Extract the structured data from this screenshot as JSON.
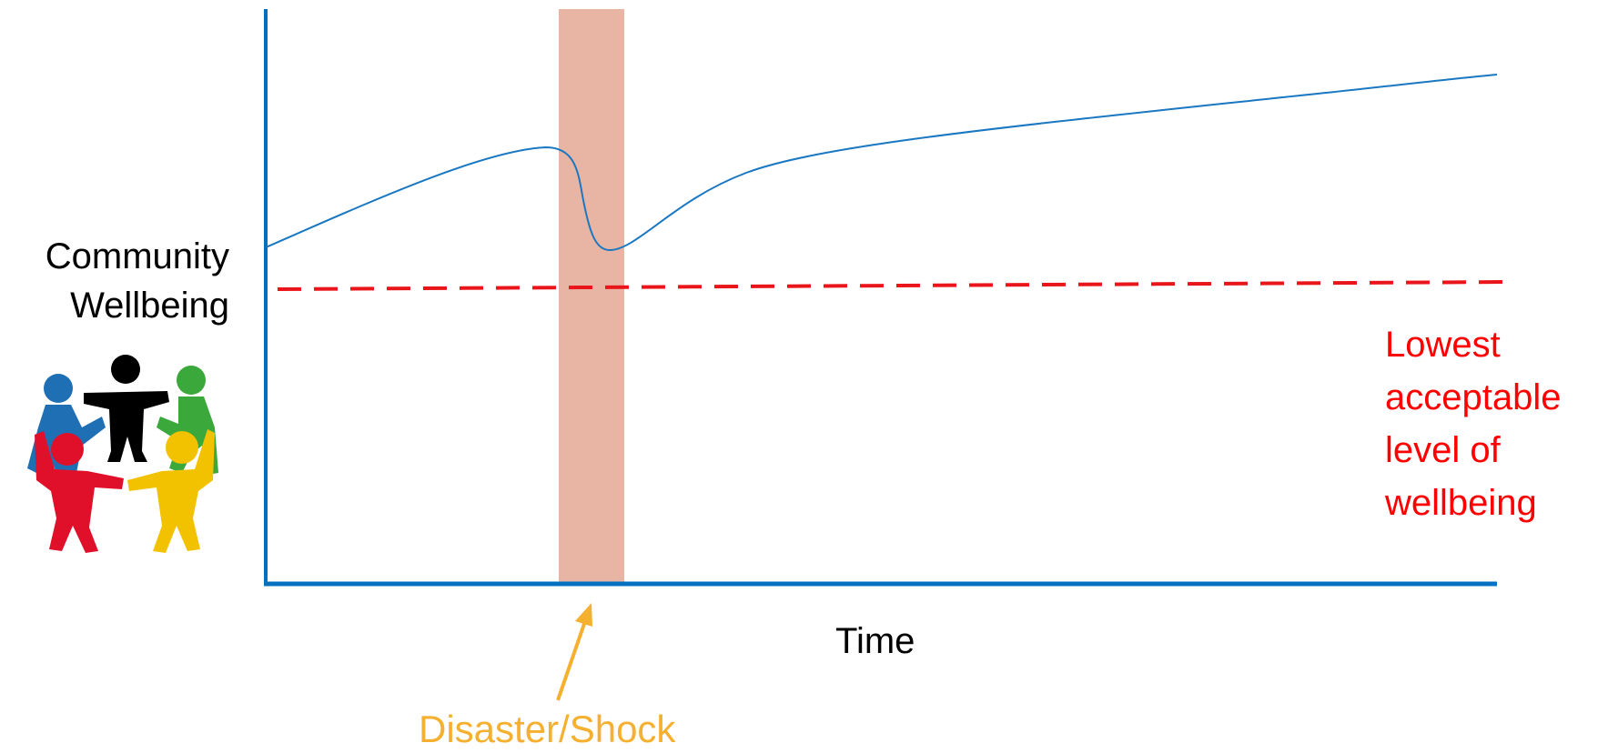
{
  "y_axis_label_lines": [
    "Community",
    "Wellbeing"
  ],
  "x_axis_label": "Time",
  "threshold_label_lines": [
    "Lowest",
    "acceptable",
    "level of",
    "wellbeing"
  ],
  "event_label": "Disaster/Shock",
  "icons": {
    "community": "community-people-circle-icon"
  },
  "colors": {
    "axis": "#0070c0",
    "curve": "#1a78c2",
    "threshold": "#e8161a",
    "threshold_text": "#ff0000",
    "shock_band": "#e8b4a4",
    "event": "#f5b030",
    "person_blue": "#1f6fb5",
    "person_black": "#000000",
    "person_green": "#3aa83a",
    "person_red": "#e0102a",
    "person_yellow": "#f2c200"
  }
}
